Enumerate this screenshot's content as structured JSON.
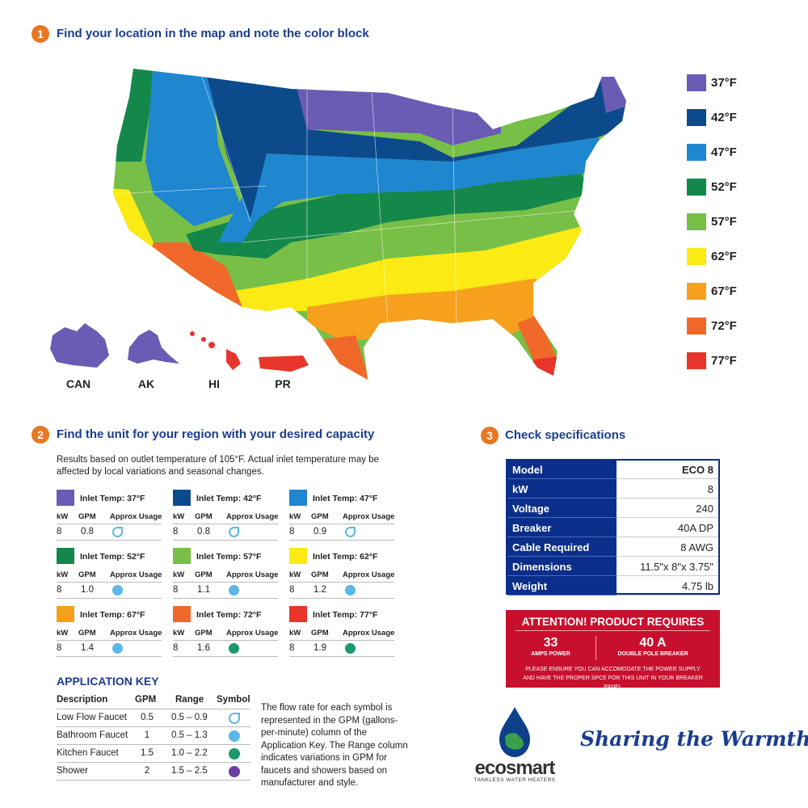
{
  "step1": {
    "number": "1",
    "title": "Find your location in the map and note the color block"
  },
  "legend": [
    {
      "label": "37°F",
      "color": "#6a5bb5"
    },
    {
      "label": "42°F",
      "color": "#0d4a8c"
    },
    {
      "label": "47°F",
      "color": "#1f86d0"
    },
    {
      "label": "52°F",
      "color": "#13884a"
    },
    {
      "label": "57°F",
      "color": "#78bf47"
    },
    {
      "label": "62°F",
      "color": "#fbea14"
    },
    {
      "label": "67°F",
      "color": "#f6a01e"
    },
    {
      "label": "72°F",
      "color": "#f0692a"
    },
    {
      "label": "77°F",
      "color": "#e8352c"
    }
  ],
  "insets": [
    "CAN",
    "AK",
    "HI",
    "PR"
  ],
  "step2": {
    "number": "2",
    "title": "Find the unit for your region with your desired capacity",
    "note": "Results based on outlet temperature of 105°F. Actual inlet temperature may be affected by local variations and seasonal changes."
  },
  "unit_columns": [
    "kW",
    "GPM",
    "Approx Usage"
  ],
  "units": [
    {
      "label": "Inlet Temp: 37°F",
      "color": "#6a5bb5",
      "kw": "8",
      "gpm": "0.8"
    },
    {
      "label": "Inlet Temp: 42°F",
      "color": "#0d4a8c",
      "kw": "8",
      "gpm": "0.8"
    },
    {
      "label": "Inlet Temp: 47°F",
      "color": "#1f86d0",
      "kw": "8",
      "gpm": "0.9"
    },
    {
      "label": "Inlet Temp: 52°F",
      "color": "#13884a",
      "kw": "8",
      "gpm": "1.0"
    },
    {
      "label": "Inlet Temp: 57°F",
      "color": "#78bf47",
      "kw": "8",
      "gpm": "1.1"
    },
    {
      "label": "Inlet Temp: 62°F",
      "color": "#fbea14",
      "kw": "8",
      "gpm": "1.2"
    },
    {
      "label": "Inlet Temp: 67°F",
      "color": "#f6a01e",
      "kw": "8",
      "gpm": "1.4"
    },
    {
      "label": "Inlet Temp: 72°F",
      "color": "#f0692a",
      "kw": "8",
      "gpm": "1.6"
    },
    {
      "label": "Inlet Temp: 77°F",
      "color": "#e8352c",
      "kw": "8",
      "gpm": "1.9"
    }
  ],
  "app_key": {
    "title": "APPLICATION KEY",
    "columns": [
      "Description",
      "GPM",
      "Range",
      "Symbol"
    ],
    "rows": [
      [
        "Low Flow Faucet",
        "0.5",
        "0.5 – 0.9"
      ],
      [
        "Bathroom Faucet",
        "1",
        "0.5 – 1.3"
      ],
      [
        "Kitchen Faucet",
        "1.5",
        "1.0 – 2.2"
      ],
      [
        "Shower",
        "2",
        "1.5 – 2.5"
      ]
    ],
    "note": "The flow rate for each symbol is represented in the GPM (gallons-per-minute) column of the Application Key. The Range column indicates variations in GPM for faucets and showers based on manufacturer and style."
  },
  "step3": {
    "number": "3",
    "title": "Check specifications"
  },
  "specs": [
    [
      "Model",
      "ECO 8"
    ],
    [
      "kW",
      "8"
    ],
    [
      "Voltage",
      "240"
    ],
    [
      "Breaker",
      "40A DP"
    ],
    [
      "Cable Required",
      "8 AWG"
    ],
    [
      "Dimensions",
      "11.5\"x 8\"x 3.75\""
    ],
    [
      "Weight",
      "4.75 lb"
    ]
  ],
  "attention": {
    "title": "ATTENTION! PRODUCT REQUIRES",
    "items": [
      {
        "value": "33",
        "label": "AMPS POWER"
      },
      {
        "value": "40 A",
        "label": "DOUBLE POLE BREAKER"
      }
    ],
    "note": "PLEASE ENSURE YOU CAN ACCOMODATE THE POWER SUPPLY AND HAVE THE PROPER SPCE FOR THIS UNIT IN YOUR BREAKER PANEL"
  },
  "brand": {
    "name": "ecosmart",
    "tagline": "TANKLESS WATER HEATERS",
    "slogan": "Sharing the Warmth",
    "tm": "™"
  }
}
